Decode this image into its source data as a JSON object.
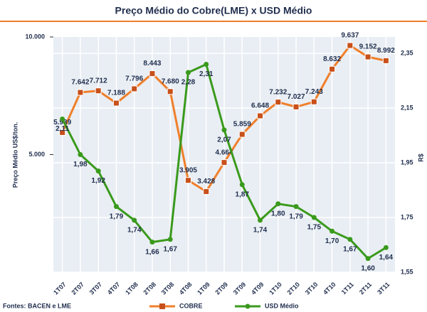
{
  "chart_data": {
    "type": "line",
    "title": "Preço Médio do Cobre(LME) x USD Médio",
    "y_label": "Preço Médio US$/ton.",
    "y2_label": "R$",
    "source": "Fontes: BACEN e LME",
    "categories": [
      "1T07",
      "2T07",
      "3T07",
      "4T07",
      "1T08",
      "2T08",
      "3T08",
      "4T08",
      "1T09",
      "2T09",
      "3T09",
      "4T09",
      "1T10",
      "2T10",
      "3T10",
      "4T10",
      "1T11",
      "2T11",
      "3T11"
    ],
    "series": [
      {
        "name": "COBRE",
        "color": "#f07f2a",
        "axis": "y",
        "values": [
          5939,
          7642,
          7712,
          7188,
          7796,
          8443,
          7680,
          3905,
          3428,
          4664,
          5859,
          6648,
          7232,
          7027,
          7243,
          8632,
          9637,
          9152,
          8992
        ],
        "value_labels": [
          "5.939",
          "7.642",
          "7.712",
          "7.188",
          "7.796",
          "8.443",
          "7.680",
          "3.905",
          "3.428",
          "4.664",
          "5.859",
          "6.648",
          "7.232",
          "7.027",
          "7.243",
          "8.632",
          "9.637",
          "9.152",
          "8.992"
        ]
      },
      {
        "name": "USD Médio",
        "color": "#3a9a1c",
        "axis": "y2",
        "values": [
          2.11,
          1.98,
          1.92,
          1.79,
          1.74,
          1.66,
          1.67,
          2.28,
          2.31,
          2.07,
          1.87,
          1.74,
          1.8,
          1.79,
          1.75,
          1.7,
          1.67,
          1.6,
          1.64
        ],
        "value_labels": [
          "2,11",
          "1,98",
          "1,92",
          "1,79",
          "1,74",
          "1,66",
          "1,67",
          "2,28",
          "2,31",
          "2,07",
          "1,87",
          "1,74",
          "1,80",
          "1,79",
          "1,75",
          "1,70",
          "1,67",
          "1,60",
          "1,64"
        ]
      }
    ],
    "ylim": [
      0,
      10000
    ],
    "yticks": [
      {
        "value": 5000,
        "label": "5.000"
      },
      {
        "value": 10000,
        "label": "10.000"
      }
    ],
    "y2lim": [
      1.55,
      2.41
    ],
    "y2ticks": [
      {
        "value": 1.55,
        "label": "1,55"
      },
      {
        "value": 1.75,
        "label": "1,75"
      },
      {
        "value": 1.95,
        "label": "1,95"
      },
      {
        "value": 2.15,
        "label": "2,15"
      },
      {
        "value": 2.35,
        "label": "2,35"
      }
    ],
    "grid": true
  }
}
